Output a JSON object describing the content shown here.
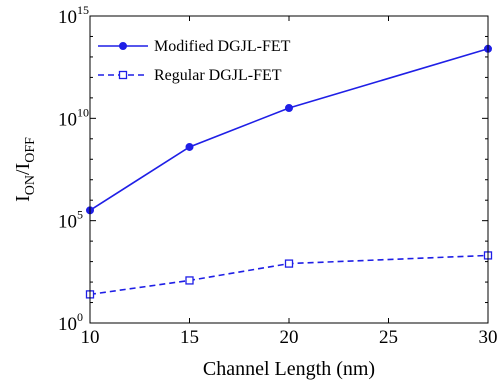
{
  "chart_data": {
    "type": "line",
    "xlabel": "Channel Length (nm)",
    "ylabel": {
      "base": "I",
      "sub1": "ON",
      "sep": "/I",
      "sub2": "OFF"
    },
    "x": [
      10,
      15,
      20,
      25,
      30
    ],
    "xlim": [
      10,
      30
    ],
    "ylim": [
      1,
      1000000000000000.0
    ],
    "yscale": "log",
    "y_ticks": [
      {
        "base": "10",
        "exp": "0",
        "log": 0
      },
      {
        "base": "10",
        "exp": "5",
        "log": 5
      },
      {
        "base": "10",
        "exp": "10",
        "log": 10
      },
      {
        "base": "10",
        "exp": "15",
        "log": 15
      }
    ],
    "series": [
      {
        "name": "Modified DGJL-FET",
        "color": "#1f1fe6",
        "marker": "filled-circle",
        "linestyle": "solid",
        "x": [
          10,
          15,
          20,
          30
        ],
        "y": [
          320000.0,
          400000000.0,
          32000000000.0,
          25000000000000.0
        ]
      },
      {
        "name": "Regular DGJL-FET",
        "color": "#1f1fe6",
        "marker": "open-square",
        "linestyle": "dashed",
        "x": [
          10,
          15,
          20,
          30
        ],
        "y": [
          25,
          120,
          800,
          2000
        ]
      }
    ],
    "legend_position": "top-left",
    "grid": false
  }
}
